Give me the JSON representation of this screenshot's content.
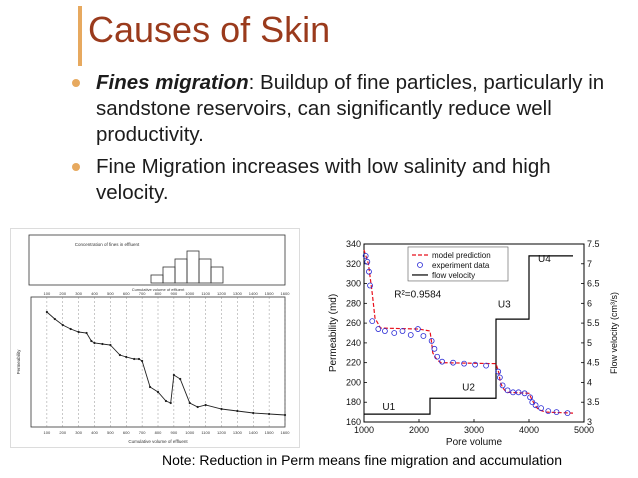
{
  "slide": {
    "title": "Causes of Skin",
    "bullets": [
      {
        "term": "Fines migration",
        "text": ": Buildup of fine particles, particularly in sandstone reservoirs, can significantly reduce well productivity."
      },
      {
        "term": "",
        "text": "Fine Migration increases with low salinity and high velocity."
      }
    ],
    "note": "Note: Reduction in Perm means fine migration and accumulation",
    "accent_color": "#e7a95f",
    "title_color": "#9a3a1c"
  },
  "chart_data": [
    {
      "type": "line",
      "xlabel": "Pore volume",
      "ylabel": "Permeability (md)",
      "y2label": "Flow velocity (cm³/s)",
      "xlim": [
        1000,
        5000
      ],
      "ylim": [
        160,
        340
      ],
      "y2lim": [
        3,
        7.5
      ],
      "xticks": [
        1000,
        2000,
        3000,
        4000,
        5000
      ],
      "yticks": [
        160,
        180,
        200,
        220,
        240,
        260,
        280,
        300,
        320,
        340
      ],
      "y2ticks": [
        "3",
        "3.5",
        "4",
        "4.5",
        "5",
        "5.5",
        "6",
        "6.5",
        "7",
        "7.5"
      ],
      "annotation": "R²=0.9584",
      "legend_position": "top",
      "legend": [
        "model prediction",
        "experiment data",
        "flow velocity"
      ],
      "stage_labels": [
        {
          "text": "U1",
          "x": 1450,
          "y": 172
        },
        {
          "text": "U2",
          "x": 2900,
          "y": 192
        },
        {
          "text": "U3",
          "x": 3550,
          "y": 276
        },
        {
          "text": "U4",
          "x": 4280,
          "y": 322
        }
      ],
      "series": [
        {
          "name": "model prediction",
          "style": "dashed",
          "color": "#e8101c",
          "x": [
            1000,
            1080,
            1150,
            1200,
            1300,
            2000,
            2200,
            2230,
            2250,
            2300,
            2350,
            2400,
            3400,
            3450,
            3480,
            3520,
            3560,
            3620,
            4000,
            4050,
            4100,
            4150,
            4200,
            4300,
            4800
          ],
          "y": [
            334,
            320,
            290,
            265,
            255,
            254,
            252,
            240,
            230,
            225,
            222,
            220,
            219,
            210,
            200,
            195,
            192,
            190,
            189,
            183,
            178,
            174,
            172,
            170,
            169
          ]
        },
        {
          "name": "experiment data",
          "style": "marker",
          "color": "#2b2bd6",
          "x": [
            1030,
            1060,
            1090,
            1110,
            1150,
            1260,
            1380,
            1550,
            1700,
            1850,
            1980,
            2080,
            2230,
            2280,
            2330,
            2420,
            2620,
            2820,
            3020,
            3220,
            3440,
            3470,
            3520,
            3610,
            3710,
            3810,
            3920,
            4020,
            4060,
            4120,
            4220,
            4350,
            4500,
            4700
          ],
          "y": [
            328,
            322,
            312,
            298,
            262,
            254,
            252,
            250,
            252,
            248,
            254,
            247,
            242,
            234,
            226,
            221,
            220,
            219,
            218,
            217,
            211,
            205,
            197,
            192,
            190,
            190,
            189,
            185,
            180,
            177,
            174,
            171,
            170,
            169
          ]
        },
        {
          "name": "flow velocity",
          "style": "solid",
          "color": "#000000",
          "axis": "y2",
          "x": [
            1000,
            1000,
            2200,
            2200,
            3400,
            3400,
            4000,
            4000,
            4800
          ],
          "y": [
            3.2,
            3.2,
            3.2,
            3.6,
            3.6,
            5.6,
            5.6,
            7.2,
            7.2
          ]
        }
      ]
    },
    {
      "type": "line",
      "title": "Concentration of fines in effluent",
      "xlabel": "Cumulative volume of effluent",
      "ylabel": "Permeability",
      "xticks": [
        100,
        200,
        300,
        400,
        500,
        600,
        700,
        800,
        900,
        1000,
        1100,
        1200,
        1300,
        1400,
        1500,
        1600
      ],
      "histogram_values": [
        1,
        2,
        3,
        4,
        3,
        2
      ],
      "series": [
        {
          "name": "permeability",
          "x": [
            100,
            150,
            200,
            250,
            300,
            350,
            380,
            400,
            450,
            500,
            560,
            600,
            650,
            680,
            700,
            750,
            800,
            850,
            880,
            900,
            940,
            1000,
            1050,
            1100,
            1200,
            1300,
            1400,
            1500,
            1600
          ],
          "y": [
            1450,
            1380,
            1320,
            1280,
            1250,
            1240,
            1160,
            1140,
            1130,
            1120,
            1020,
            1000,
            980,
            980,
            960,
            700,
            650,
            560,
            540,
            820,
            780,
            540,
            500,
            520,
            480,
            460,
            440,
            430,
            420
          ]
        }
      ]
    }
  ]
}
